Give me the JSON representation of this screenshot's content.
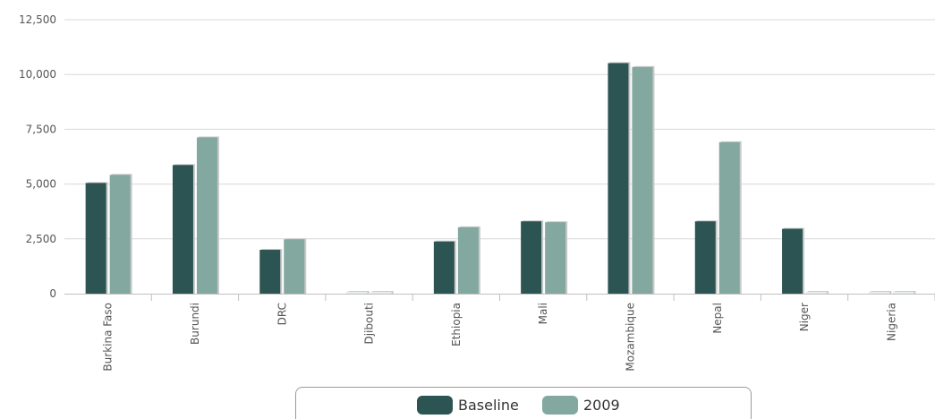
{
  "chart_data": {
    "type": "bar",
    "categories": [
      "Burkina Faso",
      "Burundi",
      "DRC",
      "Djibouti",
      "Ethiopia",
      "Mali",
      "Mozambique",
      "Nepal",
      "Niger",
      "Nigeria"
    ],
    "series": [
      {
        "name": "Baseline",
        "color": "#2b5452",
        "values": [
          5050,
          5870,
          2000,
          0,
          2380,
          3300,
          10520,
          3300,
          2960,
          0
        ]
      },
      {
        "name": "2009",
        "color": "#82a89f",
        "values": [
          5420,
          7130,
          2480,
          0,
          3030,
          3260,
          10340,
          6910,
          0,
          0
        ]
      }
    ],
    "y_ticks": [
      "0",
      "2,500",
      "5,000",
      "7,500",
      "10,000",
      "12,500"
    ],
    "ylim": [
      0,
      12500
    ],
    "grid": true,
    "legend_position": "bottom-center"
  }
}
